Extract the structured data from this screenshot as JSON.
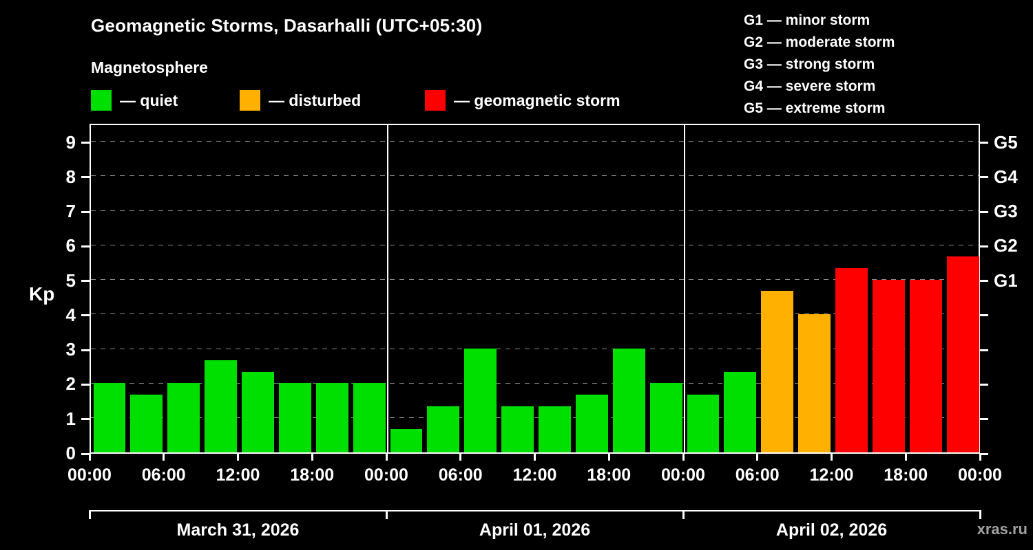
{
  "title": "Geomagnetic Storms, Dasarhalli (UTC+05:30)",
  "subtitle": "Magnetosphere",
  "watermark": "xras.ru",
  "colors": {
    "background": "#000000",
    "text": "#ffffff",
    "axis": "#ffffff",
    "grid": "#8f8f8f",
    "quiet": "#00e000",
    "disturbed": "#ffb000",
    "storm": "#ff0000",
    "watermark": "#a2a2a2"
  },
  "legend_items": [
    {
      "key": "quiet",
      "label": "— quiet"
    },
    {
      "key": "disturbed",
      "label": "— disturbed"
    },
    {
      "key": "storm",
      "label": "— geomagnetic storm"
    }
  ],
  "storm_scale": [
    "G1 — minor storm",
    "G2 — moderate storm",
    "G3 — strong storm",
    "G4 — severe storm",
    "G5 — extreme storm"
  ],
  "chart_data": {
    "type": "bar",
    "title": "Geomagnetic Storms, Dasarhalli (UTC+05:30)",
    "ylabel": "Kp",
    "ylim": [
      0,
      9.55
    ],
    "yticks": [
      0,
      1,
      2,
      3,
      4,
      5,
      6,
      7,
      8,
      9
    ],
    "grid": "dashed-horizontal",
    "right_axis_labels": [
      {
        "label": "G5",
        "value": 9
      },
      {
        "label": "G4",
        "value": 8
      },
      {
        "label": "G3",
        "value": 7
      },
      {
        "label": "G2",
        "value": 6
      },
      {
        "label": "G1",
        "value": 5
      }
    ],
    "x_tick_labels": [
      "00:00",
      "06:00",
      "12:00",
      "18:00"
    ],
    "x_axis_end_label": "00:00",
    "bar_interval_hours": 3,
    "days": [
      {
        "date": "March 31, 2026",
        "values": [
          2.0,
          1.67,
          2.0,
          2.67,
          2.33,
          2.0,
          2.0,
          2.0
        ],
        "levels": [
          "quiet",
          "quiet",
          "quiet",
          "quiet",
          "quiet",
          "quiet",
          "quiet",
          "quiet"
        ]
      },
      {
        "date": "April 01, 2026",
        "values": [
          0.67,
          1.33,
          3.0,
          1.33,
          1.33,
          1.67,
          3.0,
          2.0
        ],
        "levels": [
          "quiet",
          "quiet",
          "quiet",
          "quiet",
          "quiet",
          "quiet",
          "quiet",
          "quiet"
        ]
      },
      {
        "date": "April 02, 2026",
        "values": [
          1.67,
          2.33,
          4.67,
          4.0,
          5.33,
          5.0,
          5.0,
          5.67
        ],
        "levels": [
          "quiet",
          "quiet",
          "disturbed",
          "disturbed",
          "storm",
          "storm",
          "storm",
          "storm"
        ]
      }
    ]
  }
}
